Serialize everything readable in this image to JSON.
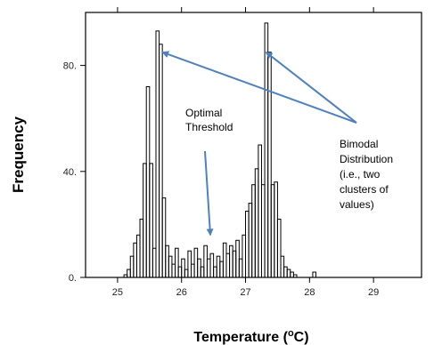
{
  "chart_data": {
    "type": "bar",
    "xlabel_main": "Temperature (",
    "xlabel_sup": "o",
    "xlabel_tail": "C)",
    "ylabel": "Frequency",
    "xlim": [
      24.5,
      29.75
    ],
    "ylim": [
      0,
      100
    ],
    "x_ticks": [
      25,
      26,
      27,
      28,
      29
    ],
    "x_tick_labels": [
      "25",
      "26",
      "27",
      "28",
      "29"
    ],
    "y_ticks": [
      0,
      40,
      80
    ],
    "y_tick_labels": [
      "0.",
      "40.",
      "80."
    ],
    "bin_width": 0.05,
    "bins": [
      {
        "x": 25.1,
        "y": 1
      },
      {
        "x": 25.15,
        "y": 3
      },
      {
        "x": 25.2,
        "y": 8
      },
      {
        "x": 25.25,
        "y": 13
      },
      {
        "x": 25.3,
        "y": 16
      },
      {
        "x": 25.35,
        "y": 22
      },
      {
        "x": 25.4,
        "y": 43
      },
      {
        "x": 25.45,
        "y": 72
      },
      {
        "x": 25.5,
        "y": 43
      },
      {
        "x": 25.55,
        "y": 11
      },
      {
        "x": 25.6,
        "y": 93
      },
      {
        "x": 25.65,
        "y": 88
      },
      {
        "x": 25.7,
        "y": 30
      },
      {
        "x": 25.75,
        "y": 12
      },
      {
        "x": 25.8,
        "y": 8
      },
      {
        "x": 25.85,
        "y": 5
      },
      {
        "x": 25.9,
        "y": 11
      },
      {
        "x": 25.95,
        "y": 4
      },
      {
        "x": 26.0,
        "y": 7
      },
      {
        "x": 26.05,
        "y": 3
      },
      {
        "x": 26.1,
        "y": 10
      },
      {
        "x": 26.15,
        "y": 5
      },
      {
        "x": 26.2,
        "y": 11
      },
      {
        "x": 26.25,
        "y": 7
      },
      {
        "x": 26.3,
        "y": 4
      },
      {
        "x": 26.35,
        "y": 12
      },
      {
        "x": 26.4,
        "y": 7
      },
      {
        "x": 26.45,
        "y": 9
      },
      {
        "x": 26.5,
        "y": 4
      },
      {
        "x": 26.55,
        "y": 8
      },
      {
        "x": 26.6,
        "y": 6
      },
      {
        "x": 26.65,
        "y": 13
      },
      {
        "x": 26.7,
        "y": 9
      },
      {
        "x": 26.75,
        "y": 12
      },
      {
        "x": 26.8,
        "y": 10
      },
      {
        "x": 26.85,
        "y": 14
      },
      {
        "x": 26.9,
        "y": 7
      },
      {
        "x": 26.95,
        "y": 16
      },
      {
        "x": 27.0,
        "y": 25
      },
      {
        "x": 27.05,
        "y": 28
      },
      {
        "x": 27.1,
        "y": 35
      },
      {
        "x": 27.15,
        "y": 41
      },
      {
        "x": 27.2,
        "y": 50
      },
      {
        "x": 27.25,
        "y": 35
      },
      {
        "x": 27.3,
        "y": 96
      },
      {
        "x": 27.35,
        "y": 85
      },
      {
        "x": 27.4,
        "y": 35
      },
      {
        "x": 27.45,
        "y": 36
      },
      {
        "x": 27.5,
        "y": 22
      },
      {
        "x": 27.55,
        "y": 8
      },
      {
        "x": 27.6,
        "y": 4
      },
      {
        "x": 27.65,
        "y": 3
      },
      {
        "x": 27.7,
        "y": 2
      },
      {
        "x": 27.75,
        "y": 1
      },
      {
        "x": 28.05,
        "y": 2
      }
    ],
    "annotations": [
      {
        "id": "threshold",
        "lines": [
          "Optimal",
          "Threshold"
        ]
      },
      {
        "id": "bimodal",
        "lines": [
          "Bimodal",
          "Distribution",
          "(i.e., two",
          "clusters of",
          "values)"
        ]
      }
    ],
    "annotation_targets": {
      "threshold_arrow_to": {
        "x": 26.45,
        "y": 16
      },
      "bimodal_arrow_to_left": {
        "x": 25.7,
        "y": 85
      },
      "bimodal_arrow_to_right": {
        "x": 27.32,
        "y": 85
      }
    },
    "colors": {
      "bars": "#000000",
      "arrows": "#4f81bd",
      "axes": "#000000"
    }
  }
}
